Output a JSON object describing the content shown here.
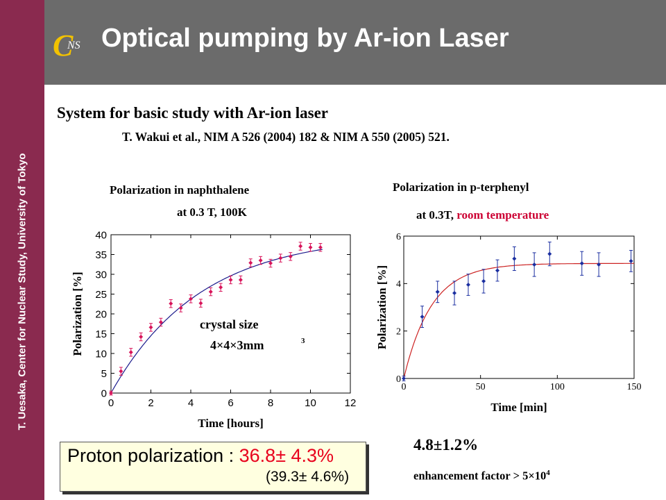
{
  "sidebar": {
    "text": "T. Uesaka, Center for Nuclear Study, University of Tokyo"
  },
  "logo": {
    "letters": "CNS"
  },
  "header": {
    "title": "Optical pumping by Ar-ion Laser"
  },
  "heading": "System for basic study with Ar-ion laser",
  "reference": "T. Wakui et al., NIM A 526 (2004) 182 & NIM A 550 (2005) 521.",
  "colors": {
    "sidebar": "#8a2a4f",
    "header": "#6b6b6b",
    "accent_red": "#cc0033",
    "curve_blue": "#1a1a8c",
    "data_pink": "#d8145a",
    "data_blue": "#1a2ea0",
    "curve_red": "#cc2222"
  },
  "chart_data": [
    {
      "type": "scatter",
      "title": "Polarization in naphthalene",
      "subtitle": "at 0.3 T, 100K",
      "xlabel": "Time [hours]",
      "ylabel": "Polarization [%]",
      "xlim": [
        0,
        12
      ],
      "ylim": [
        0,
        40
      ],
      "xticks": [
        0,
        2,
        4,
        6,
        8,
        10,
        12
      ],
      "yticks": [
        0,
        5,
        10,
        15,
        20,
        25,
        30,
        35,
        40
      ],
      "annotation": [
        "crystal size",
        "4×4×3mm",
        "3"
      ],
      "fit": {
        "asymptote": 40,
        "tau_hours": 4.45
      },
      "points": [
        {
          "x": 0.0,
          "y": 0.0,
          "err": 0.5
        },
        {
          "x": 0.5,
          "y": 5.5,
          "err": 1.0
        },
        {
          "x": 1.0,
          "y": 10.3,
          "err": 1.0
        },
        {
          "x": 1.5,
          "y": 14.2,
          "err": 1.0
        },
        {
          "x": 2.0,
          "y": 16.6,
          "err": 1.0
        },
        {
          "x": 2.5,
          "y": 17.9,
          "err": 1.0
        },
        {
          "x": 3.0,
          "y": 22.6,
          "err": 1.0
        },
        {
          "x": 3.5,
          "y": 21.5,
          "err": 1.0
        },
        {
          "x": 4.0,
          "y": 23.8,
          "err": 1.0
        },
        {
          "x": 4.5,
          "y": 22.7,
          "err": 1.0
        },
        {
          "x": 5.0,
          "y": 25.6,
          "err": 1.0
        },
        {
          "x": 5.5,
          "y": 26.7,
          "err": 1.0
        },
        {
          "x": 6.0,
          "y": 28.6,
          "err": 1.0
        },
        {
          "x": 6.5,
          "y": 28.6,
          "err": 1.0
        },
        {
          "x": 7.0,
          "y": 32.9,
          "err": 1.0
        },
        {
          "x": 7.5,
          "y": 33.5,
          "err": 1.0
        },
        {
          "x": 8.0,
          "y": 32.8,
          "err": 1.0
        },
        {
          "x": 8.5,
          "y": 34.1,
          "err": 1.0
        },
        {
          "x": 9.0,
          "y": 34.5,
          "err": 1.0
        },
        {
          "x": 9.5,
          "y": 37.1,
          "err": 1.0
        },
        {
          "x": 10.0,
          "y": 36.8,
          "err": 1.0
        },
        {
          "x": 10.5,
          "y": 36.8,
          "err": 1.0
        }
      ]
    },
    {
      "type": "scatter",
      "title": "Polarization in p-terphenyl",
      "subtitle_prefix": "at 0.3T, ",
      "subtitle_highlight": "room temperature",
      "xlabel": "Time [min]",
      "ylabel": "Polarization [%]",
      "xlim": [
        0,
        150
      ],
      "ylim": [
        0,
        6
      ],
      "xticks": [
        0,
        50,
        100,
        150
      ],
      "yticks": [
        0,
        2,
        4,
        6
      ],
      "fit": {
        "asymptote": 4.85,
        "tau_min": 18
      },
      "points": [
        {
          "x": 0,
          "y": 0.0,
          "err": 0.1
        },
        {
          "x": 12,
          "y": 2.6,
          "err": 0.45
        },
        {
          "x": 22,
          "y": 3.65,
          "err": 0.45
        },
        {
          "x": 33,
          "y": 3.6,
          "err": 0.5
        },
        {
          "x": 42,
          "y": 3.95,
          "err": 0.45
        },
        {
          "x": 52,
          "y": 4.1,
          "err": 0.5
        },
        {
          "x": 61,
          "y": 4.55,
          "err": 0.45
        },
        {
          "x": 72,
          "y": 5.05,
          "err": 0.5
        },
        {
          "x": 85,
          "y": 4.8,
          "err": 0.5
        },
        {
          "x": 95,
          "y": 5.25,
          "err": 0.5
        },
        {
          "x": 116,
          "y": 4.85,
          "err": 0.5
        },
        {
          "x": 127,
          "y": 4.8,
          "err": 0.5
        },
        {
          "x": 148,
          "y": 4.95,
          "err": 0.45
        }
      ]
    }
  ],
  "result_box": {
    "label": "Proton polarization : ",
    "value": "36.8± 4.3%",
    "second": "(39.3± 4.6%)"
  },
  "pterphenyl_result": "4.8±1.2%",
  "enhancement": {
    "text": "enhancement factor > 5×10",
    "exponent": "4"
  }
}
